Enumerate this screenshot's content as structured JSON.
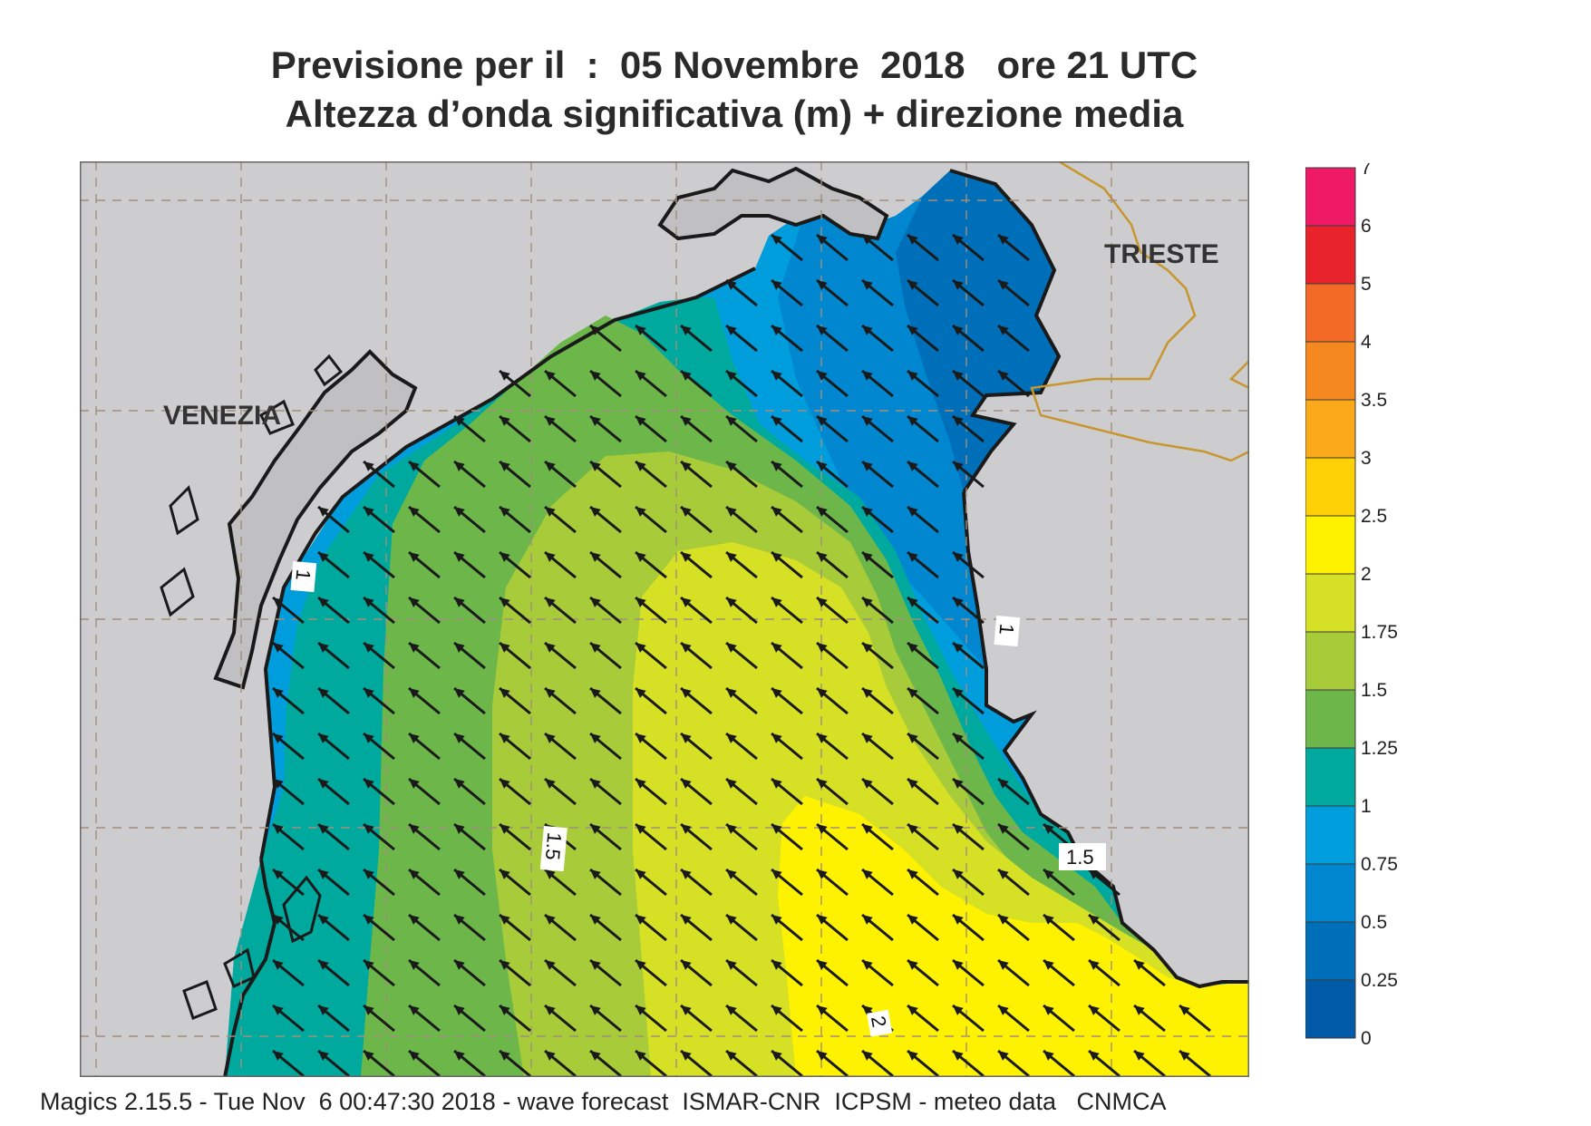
{
  "title_line1": "Previsione per il  :  05 Novembre  2018   ore 21 UTC",
  "title_line2": "Altezza d’onda significativa (m) + direzione media",
  "places": {
    "venezia": "VENEZIA",
    "trieste": "TRIESTE"
  },
  "contour_labels": [
    "1",
    "1",
    "1.5",
    "1.5",
    "2"
  ],
  "legend": {
    "ticks": [
      "7",
      "6",
      "5",
      "4",
      "3.5",
      "3",
      "2.5",
      "2",
      "1.75",
      "1.5",
      "1.25",
      "1",
      "0.75",
      "0.5",
      "0.25",
      "0"
    ],
    "colors": [
      "#ee1b64",
      "#e8232b",
      "#f26a26",
      "#f5891f",
      "#f9a91a",
      "#fdd106",
      "#fff200",
      "#d6e024",
      "#a8cb3a",
      "#6db74a",
      "#00a99d",
      "#009ddc",
      "#0087cf",
      "#006fb9",
      "#005aa8"
    ]
  },
  "colors": {
    "land": "#cdcdcf",
    "lagoon": "#c0c0c2",
    "coast": "#1a1a1a",
    "border": "#c8962e",
    "grid": "#a08f7c",
    "arrow": "#1a1a1a"
  },
  "wave_direction": "toward north-west",
  "footer": "Magics 2.15.5 - Tue Nov  6 00:47:30 2018 - wave forecast  ISMAR-CNR  ICPSM - meteo data   CNMCA"
}
